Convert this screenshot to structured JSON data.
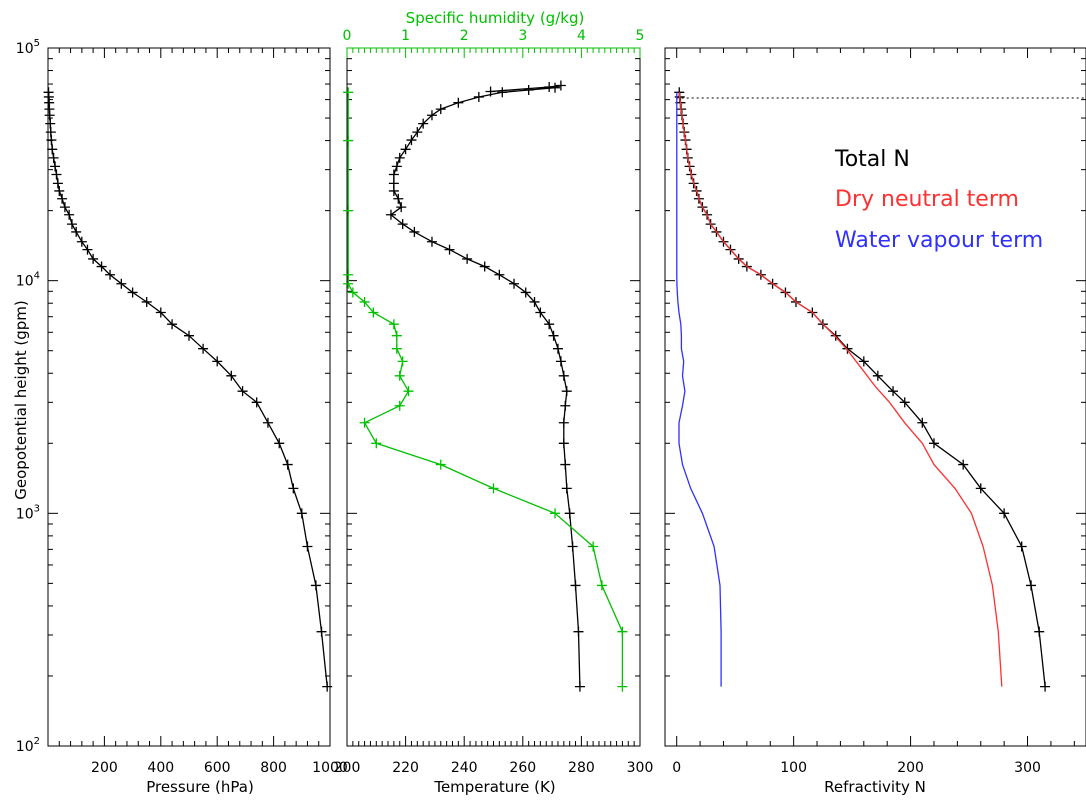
{
  "colors": {
    "axis": "#000000",
    "pressure": "#000000",
    "temperature": "#000000",
    "humidity": "#00c000",
    "total_n": "#000000",
    "dry_term": "#ff3030",
    "wet_term": "#3030ff",
    "tropopause_line": "#000000"
  },
  "chart_data": [
    {
      "type": "line",
      "panel": "pressure",
      "xlabel": "Pressure (hPa)",
      "ylabel": "Geopotential height (gpm)",
      "xlim": [
        0,
        1000
      ],
      "ylim": [
        100,
        100000
      ],
      "yscale": "log",
      "xticks": [
        "200",
        "400",
        "600",
        "800",
        "1000"
      ],
      "yticks": [
        {
          "v": 100,
          "base": "10",
          "exp": "2"
        },
        {
          "v": 1000,
          "base": "10",
          "exp": "3"
        },
        {
          "v": 10000,
          "base": "10",
          "exp": "4"
        },
        {
          "v": 100000,
          "base": "10",
          "exp": "5"
        }
      ],
      "series": [
        {
          "markers": true,
          "x": [
            990,
            970,
            950,
            920,
            900,
            870,
            850,
            820,
            780,
            740,
            690,
            650,
            600,
            550,
            500,
            440,
            400,
            350,
            300,
            260,
            220,
            190,
            160,
            140,
            120,
            100,
            85,
            75,
            60,
            50,
            40,
            35,
            30,
            25,
            20,
            15,
            12,
            10,
            8,
            6,
            5,
            4,
            3,
            2
          ],
          "y": [
            180,
            310,
            490,
            720,
            1000,
            1280,
            1620,
            2000,
            2450,
            3000,
            3350,
            3900,
            4500,
            5100,
            5800,
            6500,
            7300,
            8100,
            8900,
            9700,
            10600,
            11500,
            12400,
            13600,
            14700,
            16200,
            17500,
            19200,
            20700,
            22500,
            24300,
            26200,
            28600,
            31000,
            33700,
            36700,
            40200,
            43500,
            47300,
            51400,
            54600,
            58200,
            61600,
            64500
          ]
        }
      ]
    },
    {
      "type": "line",
      "panel": "temperature_humidity",
      "xlabel": "Temperature (K)",
      "x2label": "Specific humidity (g/kg)",
      "xlim": [
        200,
        300
      ],
      "x2lim": [
        0,
        5
      ],
      "ylim": [
        100,
        100000
      ],
      "yscale": "log",
      "xticks": [
        "200",
        "220",
        "240",
        "260",
        "280",
        "300"
      ],
      "x2ticks": [
        "0",
        "1",
        "2",
        "3",
        "4",
        "5"
      ],
      "series": [
        {
          "name": "",
          "axis": "x",
          "markers": true,
          "x": [
            279.5,
            279,
            278,
            277,
            276,
            275,
            274.5,
            274,
            274,
            274.5,
            275,
            274,
            273,
            272,
            270.5,
            269,
            266,
            264,
            261,
            257,
            252,
            247,
            241,
            235,
            229,
            223,
            219,
            215,
            218.5,
            217.5,
            216,
            216,
            216,
            217,
            218,
            220,
            222,
            224,
            226,
            229,
            232,
            238,
            245,
            253,
            262,
            271,
            273,
            269,
            249
          ],
          "y": [
            180,
            310,
            490,
            720,
            1000,
            1280,
            1620,
            2000,
            2450,
            2900,
            3350,
            3900,
            4500,
            5100,
            5800,
            6500,
            7300,
            8100,
            8900,
            9700,
            10600,
            11500,
            12400,
            13600,
            14700,
            16200,
            17500,
            19200,
            20700,
            22500,
            24300,
            26200,
            28600,
            31000,
            33700,
            36700,
            40200,
            43500,
            47300,
            51400,
            54600,
            58200,
            61600,
            64500,
            66000,
            67500,
            69000,
            68000,
            65000
          ]
        },
        {
          "name": "",
          "axis": "x2",
          "markers": true,
          "x": [
            4.7,
            4.7,
            4.35,
            4.2,
            3.55,
            2.5,
            1.6,
            0.5,
            0.3,
            0.9,
            1.05,
            0.9,
            0.95,
            0.85,
            0.85,
            0.8,
            0.45,
            0.3,
            0.1,
            0.02,
            0.02,
            0.02,
            0.02,
            0.02
          ],
          "y": [
            180,
            310,
            490,
            720,
            1000,
            1280,
            1620,
            2000,
            2450,
            2900,
            3350,
            3900,
            4500,
            5100,
            5800,
            6500,
            7300,
            8100,
            8900,
            9700,
            10600,
            20000,
            40000,
            64500
          ]
        }
      ]
    },
    {
      "type": "line",
      "panel": "refractivity",
      "xlabel": "Refractivity N",
      "xlim": [
        -10,
        350
      ],
      "ylim": [
        100,
        100000
      ],
      "yscale": "log",
      "xticks": [
        "0",
        "100",
        "200",
        "300"
      ],
      "tropopause_height": 61000,
      "legend": [
        "Total N",
        "Dry neutral term",
        "Water vapour term"
      ],
      "legend_position": "top-right",
      "series": [
        {
          "name": "Total N",
          "markers": true,
          "x": [
            315,
            310,
            303,
            295,
            280,
            260,
            245,
            220,
            210,
            195,
            185,
            172,
            160,
            146,
            136,
            125,
            116,
            102,
            93,
            82,
            72,
            60,
            53,
            46,
            40,
            34,
            29,
            26,
            22,
            19,
            17,
            14.5,
            12.5,
            11,
            9.5,
            8.5,
            7.5,
            6.5,
            5.5,
            4.5,
            3.8,
            3.2,
            2.6,
            2.2,
            1.9,
            1.6,
            1.3,
            1.0,
            0.8
          ],
          "y": [
            180,
            310,
            490,
            720,
            1000,
            1280,
            1620,
            2000,
            2450,
            3000,
            3350,
            3900,
            4500,
            5100,
            5800,
            6500,
            7300,
            8100,
            8900,
            9700,
            10600,
            11500,
            12400,
            13600,
            14700,
            16200,
            17500,
            19200,
            20700,
            22500,
            24300,
            26200,
            28600,
            31000,
            33700,
            36700,
            40200,
            43500,
            47300,
            51400,
            54600,
            58200,
            61600,
            64500,
            60000,
            62000,
            63000,
            64000,
            65000
          ]
        },
        {
          "name": "Dry neutral term",
          "markers": false,
          "x": [
            278,
            275,
            270,
            262,
            252,
            238,
            220,
            210,
            195,
            182,
            170,
            158,
            145,
            135,
            125,
            116,
            102,
            93,
            82,
            72,
            60,
            53,
            46,
            40,
            34,
            29,
            26,
            22,
            19,
            17,
            14.5,
            12.5,
            11,
            9.5,
            8.5,
            7.5,
            6.5,
            5.5,
            4.5,
            3.8,
            3.2,
            2.6,
            2.2
          ],
          "y": [
            180,
            310,
            490,
            720,
            1000,
            1280,
            1620,
            2000,
            2450,
            3000,
            3500,
            4200,
            5100,
            5800,
            6500,
            7300,
            8100,
            8900,
            9700,
            10600,
            11500,
            12400,
            13600,
            14700,
            16200,
            17500,
            19200,
            20700,
            22500,
            24300,
            26200,
            28600,
            31000,
            33700,
            36700,
            40200,
            43500,
            47300,
            51400,
            54600,
            58200,
            61600,
            64500
          ]
        },
        {
          "name": "Water vapour term",
          "markers": false,
          "x": [
            38,
            38,
            37,
            32,
            22,
            12,
            5,
            2,
            2,
            5,
            7,
            5,
            6,
            4,
            4,
            3.5,
            2,
            1,
            0.5,
            0.2,
            0.1,
            0.1,
            0.1
          ],
          "y": [
            180,
            310,
            490,
            720,
            1000,
            1280,
            1620,
            2000,
            2450,
            2900,
            3350,
            3900,
            4500,
            5100,
            5800,
            6500,
            7300,
            8100,
            8900,
            9700,
            10600,
            30000,
            64500
          ]
        }
      ]
    }
  ]
}
